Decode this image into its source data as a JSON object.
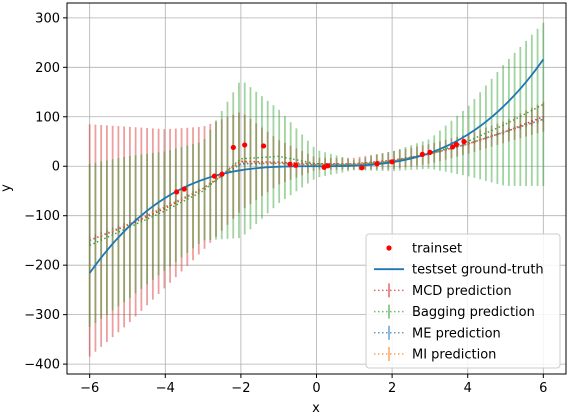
{
  "chart_data": {
    "type": "line",
    "xlabel": "x",
    "ylabel": "y",
    "xlim": [
      -6.6,
      6.6
    ],
    "ylim": [
      -420,
      330
    ],
    "grid": true,
    "legend_position": "lower-right",
    "xticks": [
      -6,
      -4,
      -2,
      0,
      2,
      4,
      6
    ],
    "yticks": [
      -400,
      -300,
      -200,
      -100,
      0,
      100,
      200,
      300
    ],
    "ground_truth": {
      "name": "testset ground-truth",
      "function": "x^3",
      "x_range": [
        -6,
        6
      ],
      "color": "#1f77b4"
    },
    "trainset": {
      "name": "trainset",
      "color": "#ff0000",
      "x": [
        -3.7,
        -3.5,
        -2.7,
        -2.5,
        -2.2,
        -1.9,
        -1.4,
        -0.7,
        -0.55,
        0.2,
        0.3,
        1.2,
        1.6,
        2.0,
        2.8,
        3.0,
        3.6,
        3.7,
        3.9
      ],
      "y": [
        -52,
        -46,
        -20,
        -16,
        38,
        43,
        41,
        4,
        2,
        -2,
        1,
        -3,
        5,
        9,
        24,
        28,
        39,
        44,
        50
      ]
    },
    "series": [
      {
        "name": "MCD prediction",
        "color": "#d62728",
        "style": "dotted-errorbar",
        "x": [
          -6,
          -5,
          -4,
          -3,
          -2,
          -1,
          0,
          1,
          2,
          3,
          4,
          5,
          6
        ],
        "mean": [
          -150,
          -120,
          -85,
          -45,
          10,
          8,
          5,
          5,
          12,
          25,
          45,
          70,
          100
        ],
        "err": [
          235,
          200,
          160,
          125,
          100,
          45,
          12,
          12,
          18,
          20,
          20,
          22,
          30
        ]
      },
      {
        "name": "Bagging prediction",
        "color": "#2ca02c",
        "style": "dotted-errorbar",
        "x": [
          -6,
          -5,
          -4,
          -3,
          -2,
          -1,
          0,
          1,
          2,
          3,
          4,
          5,
          6
        ],
        "mean": [
          -160,
          -125,
          -90,
          -50,
          15,
          20,
          5,
          2,
          10,
          25,
          50,
          85,
          125
        ],
        "err": [
          165,
          145,
          120,
          100,
          160,
          95,
          28,
          10,
          20,
          30,
          70,
          125,
          165
        ]
      },
      {
        "name": "ME prediction",
        "color": "#1f77b4",
        "style": "dotted-errorbar",
        "x": [
          -6,
          -5,
          -4,
          -3,
          -2,
          -1,
          0,
          1,
          2,
          3,
          4,
          5,
          6
        ],
        "mean": [
          -150,
          -118,
          -82,
          -45,
          5,
          6,
          3,
          4,
          10,
          25,
          45,
          70,
          95
        ],
        "err": [
          8,
          6,
          5,
          4,
          4,
          3,
          2,
          2,
          3,
          3,
          4,
          5,
          6
        ]
      },
      {
        "name": "MI prediction",
        "color": "#ff7f0e",
        "style": "dotted-errorbar",
        "x": [
          -6,
          -5,
          -4,
          -3,
          -2,
          -1,
          0,
          1,
          2,
          3,
          4,
          5,
          6
        ],
        "mean": [
          -150,
          -118,
          -82,
          -45,
          8,
          6,
          3,
          4,
          10,
          25,
          45,
          70,
          95
        ],
        "err": [
          6,
          5,
          4,
          3,
          3,
          2,
          2,
          2,
          2,
          3,
          3,
          4,
          5
        ]
      }
    ],
    "legend": [
      "trainset",
      "testset ground-truth",
      "MCD prediction",
      "Bagging prediction",
      "ME prediction",
      "MI prediction"
    ]
  }
}
